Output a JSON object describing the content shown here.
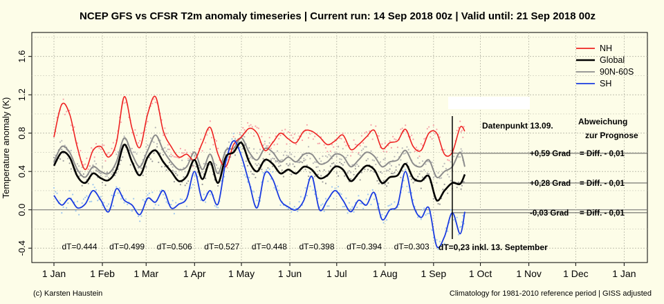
{
  "title": "NCEP GFS vs CFSR T2m anomaly timeseries | Current run: 14 Sep 2018 00z | Valid until: 21 Sep 2018 00z",
  "credit": "(c) Karsten Haustein",
  "climatology_note": "Climatology for 1981-2010 reference period | GISS adjusted",
  "colors": {
    "background": "#fdfde8",
    "NH": "#ee2222",
    "Global": "#000000",
    "90N-60S": "#8c8c8c",
    "SH": "#1a3be0"
  },
  "chart_data": {
    "type": "line",
    "title": "NCEP GFS vs CFSR T2m anomaly timeseries | Current run: 14 Sep 2018 00z | Valid until: 21 Sep 2018 00z",
    "ylabel": "Temperature anomaly (K)",
    "xlabel": "",
    "ylim": [
      -0.55,
      1.85
    ],
    "yticks": [
      "-0.4",
      "0.0",
      "0.4",
      "0.8",
      "1.2",
      "1.6"
    ],
    "xlim": [
      "2018-01-01",
      "2019-01-15"
    ],
    "xticks": [
      {
        "date": "2018-01-01",
        "label": "1 Jan"
      },
      {
        "date": "2018-02-01",
        "label": "1 Feb"
      },
      {
        "date": "2018-03-01",
        "label": "1 Mar"
      },
      {
        "date": "2018-04-01",
        "label": "1 Apr"
      },
      {
        "date": "2018-05-01",
        "label": "1 May"
      },
      {
        "date": "2018-06-01",
        "label": "1 Jun"
      },
      {
        "date": "2018-07-01",
        "label": "1 Jul"
      },
      {
        "date": "2018-08-01",
        "label": "1 Aug"
      },
      {
        "date": "2018-09-01",
        "label": "1 Sep"
      },
      {
        "date": "2018-10-01",
        "label": "1 Oct"
      },
      {
        "date": "2018-11-01",
        "label": "1 Nov"
      },
      {
        "date": "2018-12-01",
        "label": "1 Dec"
      },
      {
        "date": "2019-01-01",
        "label": "1 Jan"
      }
    ],
    "grid": true,
    "legend_position": "top-right",
    "dates": [
      "2018-01-01",
      "2018-01-06",
      "2018-01-11",
      "2018-01-16",
      "2018-01-21",
      "2018-01-26",
      "2018-01-31",
      "2018-02-05",
      "2018-02-10",
      "2018-02-15",
      "2018-02-20",
      "2018-02-25",
      "2018-03-02",
      "2018-03-07",
      "2018-03-12",
      "2018-03-17",
      "2018-03-22",
      "2018-03-27",
      "2018-04-01",
      "2018-04-06",
      "2018-04-11",
      "2018-04-16",
      "2018-04-21",
      "2018-04-26",
      "2018-05-01",
      "2018-05-06",
      "2018-05-11",
      "2018-05-16",
      "2018-05-21",
      "2018-05-26",
      "2018-05-31",
      "2018-06-05",
      "2018-06-10",
      "2018-06-15",
      "2018-06-20",
      "2018-06-25",
      "2018-06-30",
      "2018-07-05",
      "2018-07-10",
      "2018-07-15",
      "2018-07-20",
      "2018-07-25",
      "2018-07-30",
      "2018-08-04",
      "2018-08-09",
      "2018-08-14",
      "2018-08-19",
      "2018-08-24",
      "2018-08-29",
      "2018-09-03",
      "2018-09-08",
      "2018-09-13",
      "2018-09-18",
      "2018-09-21"
    ],
    "series": [
      {
        "name": "NH",
        "values": [
          0.76,
          1.1,
          1.0,
          0.65,
          0.42,
          0.62,
          0.66,
          0.55,
          0.7,
          1.18,
          0.85,
          0.65,
          1.0,
          1.18,
          0.82,
          0.66,
          0.55,
          0.58,
          0.52,
          0.7,
          0.86,
          0.58,
          0.45,
          0.68,
          0.76,
          0.85,
          0.8,
          0.62,
          0.7,
          0.8,
          0.74,
          0.7,
          0.82,
          0.82,
          0.76,
          0.68,
          0.72,
          0.78,
          0.63,
          0.68,
          0.76,
          0.83,
          0.64,
          0.7,
          0.72,
          0.84,
          0.66,
          0.62,
          0.8,
          0.8,
          0.58,
          0.6,
          0.86,
          0.82
        ]
      },
      {
        "name": "Global",
        "values": [
          0.46,
          0.6,
          0.55,
          0.35,
          0.28,
          0.38,
          0.33,
          0.31,
          0.42,
          0.68,
          0.5,
          0.36,
          0.55,
          0.62,
          0.5,
          0.4,
          0.3,
          0.35,
          0.52,
          0.32,
          0.5,
          0.28,
          0.55,
          0.6,
          0.7,
          0.5,
          0.4,
          0.52,
          0.48,
          0.38,
          0.42,
          0.38,
          0.45,
          0.42,
          0.33,
          0.36,
          0.45,
          0.42,
          0.3,
          0.38,
          0.46,
          0.42,
          0.28,
          0.34,
          0.36,
          0.48,
          0.33,
          0.3,
          0.35,
          0.1,
          0.2,
          0.28,
          0.27,
          0.37
        ]
      },
      {
        "name": "90N-60S",
        "values": [
          0.5,
          0.66,
          0.6,
          0.42,
          0.34,
          0.45,
          0.4,
          0.38,
          0.5,
          0.75,
          0.58,
          0.45,
          0.62,
          0.78,
          0.62,
          0.5,
          0.42,
          0.45,
          0.6,
          0.42,
          0.58,
          0.38,
          0.62,
          0.64,
          0.75,
          0.6,
          0.52,
          0.64,
          0.6,
          0.5,
          0.55,
          0.5,
          0.58,
          0.58,
          0.48,
          0.5,
          0.58,
          0.56,
          0.45,
          0.52,
          0.6,
          0.56,
          0.45,
          0.5,
          0.52,
          0.62,
          0.48,
          0.45,
          0.52,
          0.34,
          0.4,
          0.45,
          0.6,
          0.45
        ]
      },
      {
        "name": "SH",
        "values": [
          0.15,
          0.05,
          0.12,
          0.02,
          0.06,
          0.2,
          0.1,
          -0.02,
          0.22,
          0.1,
          0.05,
          -0.05,
          0.12,
          0.08,
          0.2,
          0.02,
          0.06,
          0.12,
          0.4,
          0.1,
          0.2,
          0.06,
          0.5,
          0.72,
          0.56,
          0.28,
          0.02,
          0.38,
          0.32,
          0.1,
          0.03,
          0.0,
          0.1,
          0.35,
          0.0,
          0.1,
          0.2,
          0.1,
          -0.02,
          0.1,
          0.05,
          0.18,
          -0.1,
          0.0,
          0.05,
          0.4,
          0.05,
          -0.08,
          0.02,
          -0.38,
          -0.28,
          -0.03,
          -0.25,
          -0.02
        ]
      }
    ],
    "vertical_marker_date": "2018-09-13",
    "reference_lines": [
      {
        "value": 0.59,
        "label": "+0,59 Grad",
        "note": "= Diff. - 0,01"
      },
      {
        "value": 0.28,
        "label": "+0,28 Grad",
        "note": "= Diff. - 0,01"
      },
      {
        "value": -0.03,
        "label": "-0,03 Grad",
        "note": "= Diff. - 0,01"
      }
    ],
    "annotations": {
      "datapoint": "Datenpunkt 13.09.",
      "deviation_line1": "Abweichung",
      "deviation_line2": "zur Prognose",
      "current_dt": "dT=0,23 inkl. 13. September"
    },
    "monthly_dt": [
      "dT=0.444",
      "dT=0.499",
      "dT=0.506",
      "dT=0.527",
      "dT=0.448",
      "dT=0.398",
      "dT=0.394",
      "dT=0.303"
    ]
  }
}
